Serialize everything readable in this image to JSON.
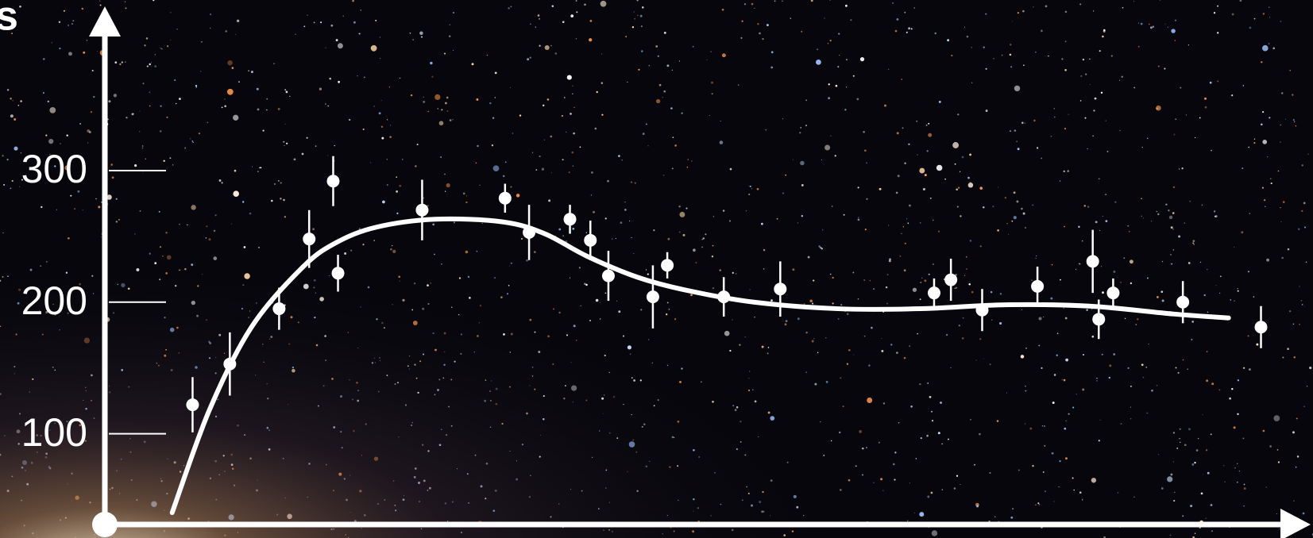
{
  "chart_data": {
    "type": "scatter",
    "y_label": "s",
    "color": "#ffffff",
    "xlim": [
      0,
      100
    ],
    "ylim": [
      31,
      423
    ],
    "yticks": [
      100,
      200,
      300
    ],
    "x": [
      7.3,
      10.4,
      14.5,
      17.0,
      19.0,
      19.4,
      26.4,
      33.3,
      35.3,
      38.7,
      40.4,
      41.9,
      45.6,
      46.8,
      51.5,
      56.2,
      69.0,
      70.4,
      73.0,
      77.6,
      82.2,
      82.7,
      83.9,
      89.7,
      96.2
    ],
    "values": [
      122,
      153,
      195,
      248,
      292,
      222,
      270,
      279,
      253,
      263,
      247,
      220,
      204,
      228,
      204,
      210,
      207,
      217,
      194,
      212,
      231,
      187,
      207,
      200,
      181
    ],
    "errors": [
      21,
      24,
      16,
      22,
      19,
      14,
      23,
      11,
      21,
      11,
      15,
      19,
      24,
      10,
      15,
      21,
      11,
      16,
      16,
      15,
      24,
      15,
      11,
      16,
      16
    ],
    "curve": {
      "type": "line",
      "x": [
        5.6,
        8.7,
        12.2,
        16.4,
        19.2,
        22.6,
        27.5,
        33.1,
        36.6,
        40.1,
        44.3,
        48.4,
        54.0,
        61.0,
        67.9,
        74.9,
        81.9,
        88.9,
        93.5
      ],
      "values": [
        40,
        118,
        181,
        226,
        245,
        257,
        263,
        261,
        252,
        235,
        219,
        209,
        200,
        195,
        195,
        198,
        197,
        191,
        188
      ]
    }
  }
}
